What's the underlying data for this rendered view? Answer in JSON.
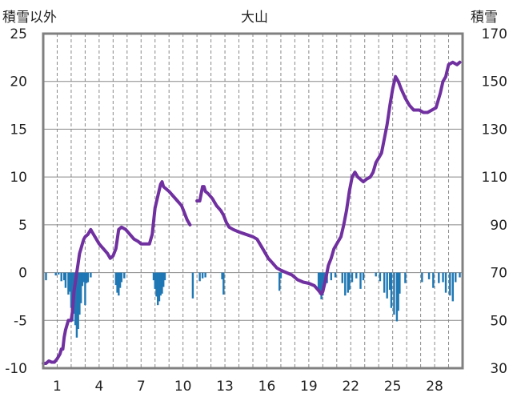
{
  "chart_data": {
    "type": "bar+line",
    "title": "大山",
    "ylabel_left": "積雪以外",
    "ylabel_right": "積雪",
    "grid": true,
    "y_left": {
      "min": -10,
      "max": 25,
      "ticks": [
        "25",
        "20",
        "15",
        "10",
        "5",
        "0",
        "-5",
        "-10"
      ]
    },
    "y_right": {
      "min": 30,
      "max": 170,
      "ticks": [
        "170",
        "150",
        "130",
        "110",
        "90",
        "70",
        "50",
        "30"
      ]
    },
    "x": {
      "min": 0,
      "max": 30,
      "tick_values": [
        1,
        4,
        7,
        10,
        13,
        16,
        19,
        22,
        25,
        28
      ],
      "tick_labels": [
        "1",
        "4",
        "7",
        "10",
        "13",
        "16",
        "19",
        "22",
        "25",
        "28"
      ]
    },
    "colors": {
      "bars": "#1f77b4",
      "line": "#7030a0",
      "frame": "#808080",
      "grid": "#888888"
    },
    "series": [
      {
        "kind": "bar",
        "axis": "left",
        "values": [
          [
            0.2,
            -0.8
          ],
          [
            0.9,
            -0.3
          ],
          [
            1.1,
            -0.2
          ],
          [
            1.3,
            -0.9
          ],
          [
            1.5,
            -0.8
          ],
          [
            1.6,
            -1.6
          ],
          [
            1.8,
            -2.3
          ],
          [
            1.9,
            -2.0
          ],
          [
            2.0,
            -3.7
          ],
          [
            2.1,
            -5.1
          ],
          [
            2.2,
            -4.3
          ],
          [
            2.3,
            -5.5
          ],
          [
            2.4,
            -6.8
          ],
          [
            2.5,
            -5.9
          ],
          [
            2.6,
            -4.4
          ],
          [
            2.7,
            -3.2
          ],
          [
            2.8,
            -1.4
          ],
          [
            2.9,
            -1.0
          ],
          [
            3.0,
            -3.4
          ],
          [
            3.1,
            -1.1
          ],
          [
            3.2,
            -1.0
          ],
          [
            3.4,
            -0.5
          ],
          [
            5.2,
            -1.3
          ],
          [
            5.3,
            -2.1
          ],
          [
            5.4,
            -2.4
          ],
          [
            5.5,
            -1.6
          ],
          [
            5.6,
            -1.0
          ],
          [
            5.8,
            -0.6
          ],
          [
            7.9,
            -0.8
          ],
          [
            8.0,
            -1.7
          ],
          [
            8.1,
            -2.5
          ],
          [
            8.2,
            -3.4
          ],
          [
            8.3,
            -3.0
          ],
          [
            8.4,
            -2.4
          ],
          [
            8.5,
            -2.2
          ],
          [
            8.6,
            -1.5
          ],
          [
            8.7,
            -0.8
          ],
          [
            10.7,
            -2.7
          ],
          [
            11.2,
            -0.9
          ],
          [
            11.4,
            -0.6
          ],
          [
            11.6,
            -0.5
          ],
          [
            12.8,
            -0.7
          ],
          [
            12.9,
            -2.3
          ],
          [
            16.9,
            -1.9
          ],
          [
            17.0,
            -0.6
          ],
          [
            19.7,
            -1.8
          ],
          [
            19.8,
            -2.3
          ],
          [
            19.9,
            -2.8
          ],
          [
            20.0,
            -2.4
          ],
          [
            20.1,
            -1.4
          ],
          [
            20.3,
            -1.1
          ],
          [
            20.6,
            -0.8
          ],
          [
            20.9,
            -0.5
          ],
          [
            21.4,
            -1.1
          ],
          [
            21.6,
            -2.4
          ],
          [
            21.8,
            -2.1
          ],
          [
            21.9,
            -1.8
          ],
          [
            22.1,
            -1.0
          ],
          [
            22.4,
            -0.6
          ],
          [
            22.7,
            -1.7
          ],
          [
            22.9,
            -0.8
          ],
          [
            23.8,
            -0.4
          ],
          [
            24.1,
            -0.9
          ],
          [
            24.4,
            -2.1
          ],
          [
            24.6,
            -2.7
          ],
          [
            24.8,
            -1.8
          ],
          [
            24.9,
            -3.7
          ],
          [
            25.1,
            -4.4
          ],
          [
            25.3,
            -5.1
          ],
          [
            25.4,
            -4.0
          ],
          [
            25.5,
            -2.2
          ],
          [
            25.9,
            -1.1
          ],
          [
            27.1,
            -1.0
          ],
          [
            27.6,
            -0.7
          ],
          [
            27.9,
            -1.6
          ],
          [
            28.3,
            -1.1
          ],
          [
            28.6,
            -1.0
          ],
          [
            28.8,
            -2.1
          ],
          [
            29.1,
            -2.4
          ],
          [
            29.3,
            -3.0
          ],
          [
            29.5,
            -1.0
          ],
          [
            29.8,
            -0.5
          ]
        ]
      },
      {
        "kind": "line",
        "axis": "right",
        "segments": [
          [
            [
              0,
              32
            ],
            [
              0.2,
              32
            ],
            [
              0.4,
              33
            ],
            [
              0.6,
              32.5
            ],
            [
              0.8,
              32.5
            ],
            [
              1.0,
              34
            ],
            [
              1.2,
              36
            ],
            [
              1.3,
              38
            ],
            [
              1.4,
              38
            ],
            [
              1.5,
              43
            ],
            [
              1.6,
              46
            ],
            [
              1.8,
              50
            ],
            [
              2.0,
              50
            ],
            [
              2.1,
              54
            ],
            [
              2.2,
              62
            ],
            [
              2.3,
              66
            ],
            [
              2.4,
              70
            ],
            [
              2.5,
              74
            ],
            [
              2.6,
              78
            ],
            [
              2.7,
              80
            ],
            [
              2.8,
              82
            ],
            [
              2.9,
              84
            ],
            [
              3.0,
              85
            ],
            [
              3.2,
              86
            ],
            [
              3.4,
              88
            ],
            [
              3.5,
              87
            ],
            [
              3.7,
              85
            ],
            [
              4.0,
              82
            ],
            [
              4.3,
              80
            ],
            [
              4.6,
              78
            ],
            [
              4.8,
              76
            ],
            [
              5.0,
              77
            ],
            [
              5.2,
              80
            ],
            [
              5.4,
              88
            ],
            [
              5.6,
              89
            ],
            [
              5.9,
              88
            ],
            [
              6.2,
              86
            ],
            [
              6.5,
              84
            ],
            [
              6.8,
              83
            ],
            [
              7.0,
              82
            ],
            [
              7.3,
              82
            ],
            [
              7.6,
              82
            ],
            [
              7.8,
              86
            ],
            [
              8.0,
              97
            ],
            [
              8.2,
              102
            ],
            [
              8.4,
              107
            ],
            [
              8.5,
              108
            ],
            [
              8.6,
              106
            ],
            [
              8.8,
              105
            ],
            [
              9.0,
              104
            ],
            [
              9.3,
              102
            ],
            [
              9.6,
              100
            ],
            [
              9.9,
              98
            ],
            [
              10.1,
              95
            ],
            [
              10.3,
              92
            ],
            [
              10.5,
              90
            ]
          ],
          [
            [
              11.0,
              100
            ],
            [
              11.2,
              100
            ],
            [
              11.4,
              106
            ],
            [
              11.5,
              106
            ],
            [
              11.6,
              104
            ],
            [
              11.8,
              103
            ],
            [
              12.1,
              101
            ],
            [
              12.4,
              98
            ],
            [
              12.7,
              96
            ],
            [
              12.9,
              94
            ],
            [
              13.1,
              91
            ],
            [
              13.3,
              89
            ],
            [
              13.6,
              88
            ],
            [
              14.0,
              87
            ],
            [
              14.5,
              86
            ],
            [
              15.0,
              85
            ],
            [
              15.3,
              84
            ],
            [
              15.5,
              82
            ],
            [
              15.8,
              79
            ],
            [
              16.1,
              76
            ],
            [
              16.4,
              74
            ],
            [
              16.7,
              72
            ],
            [
              17.0,
              71
            ],
            [
              17.4,
              70
            ],
            [
              17.8,
              69
            ],
            [
              18.2,
              67
            ],
            [
              18.6,
              66
            ],
            [
              19.0,
              65.5
            ],
            [
              19.4,
              64.5
            ],
            [
              19.7,
              62.5
            ],
            [
              19.9,
              61
            ],
            [
              20.0,
              62
            ],
            [
              20.2,
              67
            ],
            [
              20.4,
              73
            ],
            [
              20.6,
              76
            ],
            [
              20.8,
              80
            ],
            [
              21.0,
              82
            ],
            [
              21.3,
              85
            ],
            [
              21.5,
              90
            ],
            [
              21.7,
              96
            ],
            [
              21.9,
              104
            ],
            [
              22.1,
              110
            ],
            [
              22.3,
              112
            ],
            [
              22.5,
              110
            ],
            [
              22.7,
              109
            ],
            [
              22.9,
              108
            ],
            [
              23.1,
              109
            ],
            [
              23.4,
              110
            ],
            [
              23.6,
              112
            ],
            [
              23.8,
              116
            ],
            [
              24.0,
              118
            ],
            [
              24.2,
              120
            ],
            [
              24.4,
              126
            ],
            [
              24.6,
              132
            ],
            [
              24.8,
              140
            ],
            [
              25.0,
              147
            ],
            [
              25.2,
              152
            ],
            [
              25.4,
              150
            ],
            [
              25.6,
              147
            ],
            [
              25.9,
              143
            ],
            [
              26.2,
              140
            ],
            [
              26.5,
              138
            ],
            [
              26.9,
              138
            ],
            [
              27.2,
              137
            ],
            [
              27.5,
              137
            ],
            [
              27.8,
              138
            ],
            [
              28.1,
              139
            ],
            [
              28.4,
              145
            ],
            [
              28.6,
              150
            ],
            [
              28.8,
              152
            ],
            [
              29.0,
              157
            ],
            [
              29.3,
              158
            ],
            [
              29.6,
              157
            ],
            [
              29.8,
              158
            ]
          ]
        ]
      }
    ]
  }
}
